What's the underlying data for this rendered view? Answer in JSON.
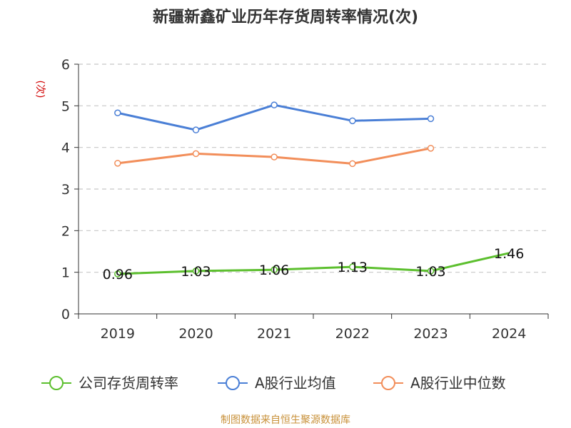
{
  "title": "新疆新鑫矿业历年存货周转率情况(次)",
  "source": "制图数据来自恒生聚源数据库",
  "colors": {
    "company": "#5cbf2e",
    "avg": "#4a7fd6",
    "median": "#f28e5a",
    "grid": "#c8c8c8",
    "ylabel": "#d10000"
  },
  "chart_data": {
    "type": "line",
    "title": "新疆新鑫矿业历年存货周转率情况(次)",
    "xlabel": "",
    "ylabel": "(次)",
    "ylim": [
      0,
      6
    ],
    "yticks": [
      "0",
      "1",
      "2",
      "3",
      "4",
      "5",
      "6"
    ],
    "categories": [
      "2019",
      "2020",
      "2021",
      "2022",
      "2023",
      "2024"
    ],
    "series": [
      {
        "name": "公司存货周转率",
        "key": "company",
        "values": [
          0.96,
          1.03,
          1.06,
          1.13,
          1.03,
          1.46
        ],
        "labels": [
          "0.96",
          "1.03",
          "1.06",
          "1.13",
          "1.03",
          "1.46"
        ]
      },
      {
        "name": "A股行业均值",
        "key": "avg",
        "values": [
          4.83,
          4.42,
          5.02,
          4.64,
          4.69,
          null
        ]
      },
      {
        "name": "A股行业中位数",
        "key": "median",
        "values": [
          3.62,
          3.85,
          3.77,
          3.61,
          3.98,
          null
        ]
      }
    ],
    "legend_position": "bottom"
  }
}
